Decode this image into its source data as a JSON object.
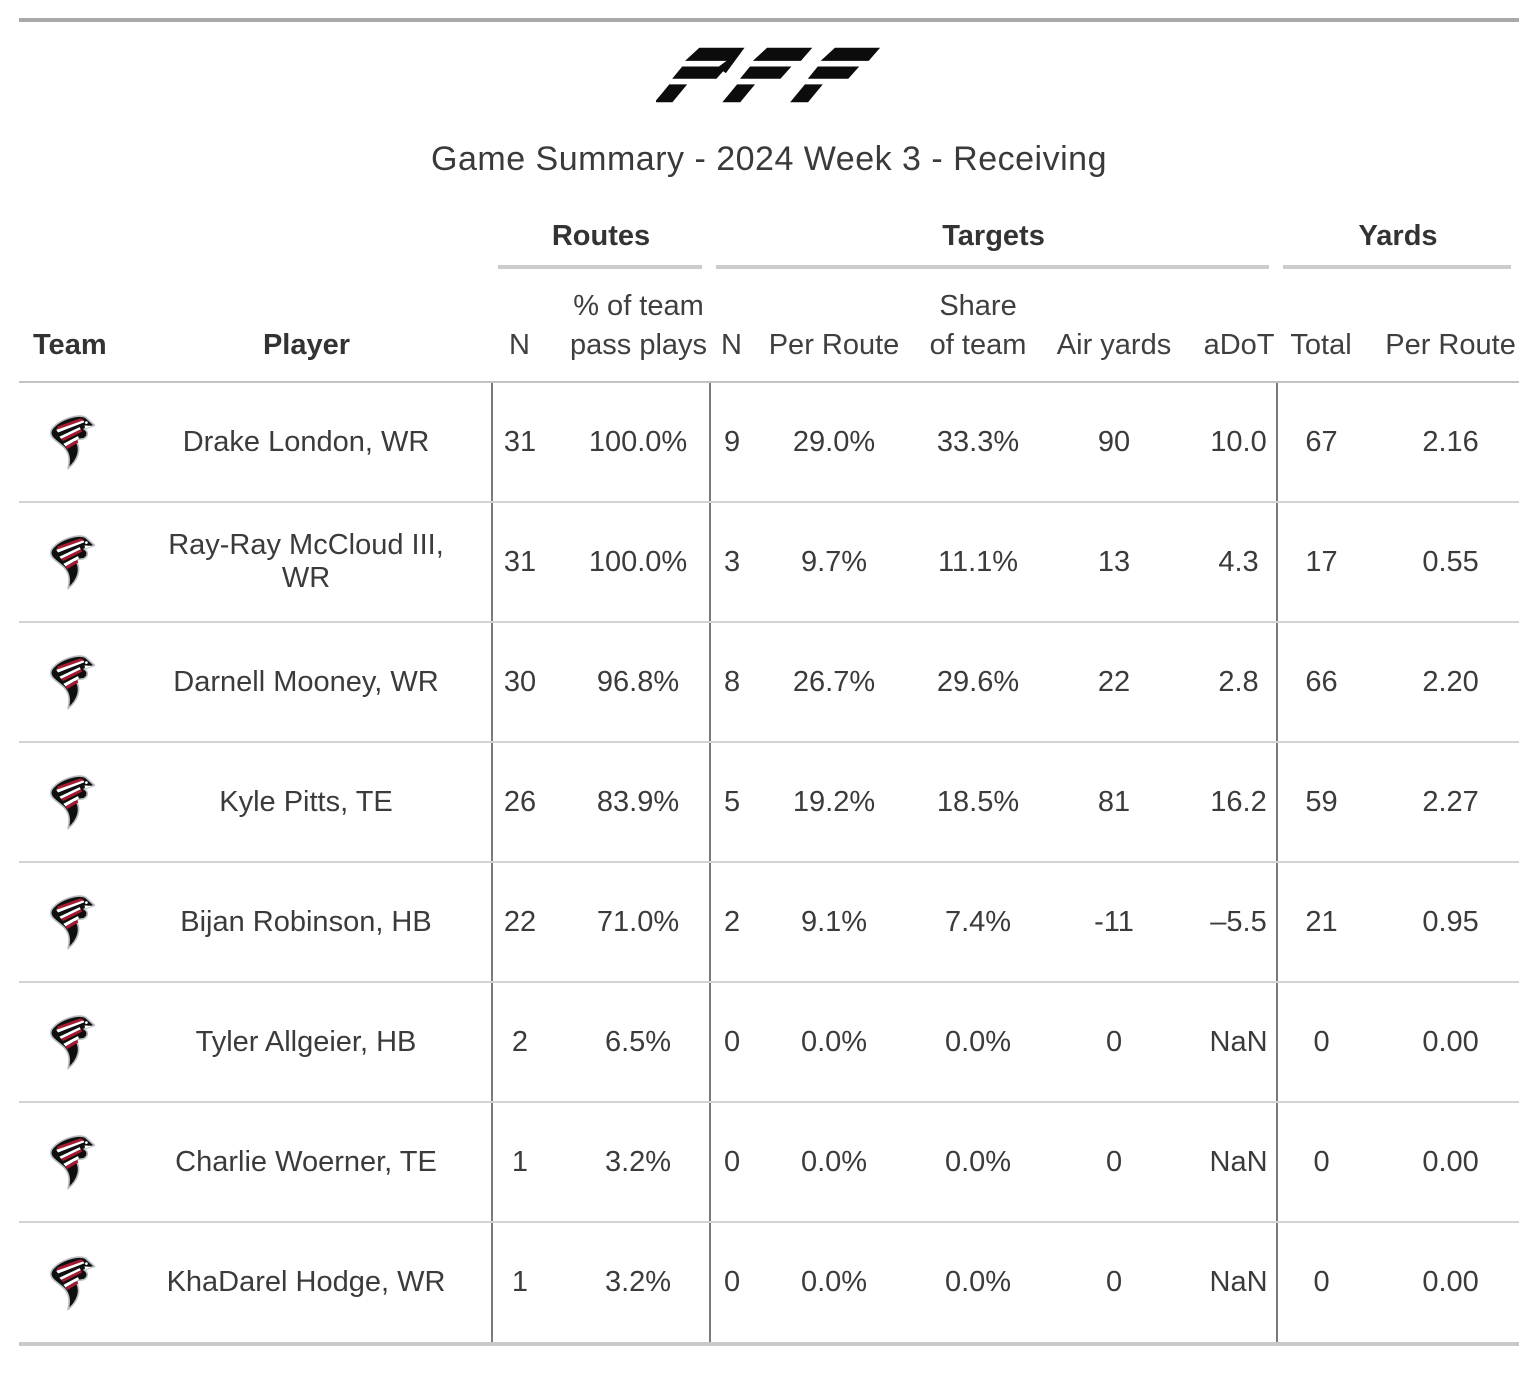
{
  "brand": {
    "logo_text": "PFF"
  },
  "title": "Game Summary - 2024 Week 3 - Receiving",
  "table": {
    "group_headers": {
      "routes": "Routes",
      "targets": "Targets",
      "yards": "Yards"
    },
    "column_headers": {
      "team": "Team",
      "player": "Player",
      "routes_n": "N",
      "routes_pct": "% of team\npass plays",
      "targets_n": "N",
      "targets_per_route": "Per Route",
      "share_of_team": "Share\nof team",
      "air_yards": "Air yards",
      "adot": "aDoT",
      "yards_total": "Total",
      "yards_per_route": "Per Route"
    },
    "team_icon": "atlanta-falcons-logo",
    "rows": [
      {
        "player": "Drake London, WR",
        "stats": [
          "31",
          "100.0%",
          "9",
          "29.0%",
          "33.3%",
          "90",
          "10.0",
          "67",
          "2.16"
        ]
      },
      {
        "player": "Ray-Ray McCloud III, WR",
        "stats": [
          "31",
          "100.0%",
          "3",
          "9.7%",
          "11.1%",
          "13",
          "4.3",
          "17",
          "0.55"
        ]
      },
      {
        "player": "Darnell Mooney, WR",
        "stats": [
          "30",
          "96.8%",
          "8",
          "26.7%",
          "29.6%",
          "22",
          "2.8",
          "66",
          "2.20"
        ]
      },
      {
        "player": "Kyle Pitts, TE",
        "stats": [
          "26",
          "83.9%",
          "5",
          "19.2%",
          "18.5%",
          "81",
          "16.2",
          "59",
          "2.27"
        ]
      },
      {
        "player": "Bijan Robinson, HB",
        "stats": [
          "22",
          "71.0%",
          "2",
          "9.1%",
          "7.4%",
          "-11",
          "–5.5",
          "21",
          "0.95"
        ]
      },
      {
        "player": "Tyler Allgeier, HB",
        "stats": [
          "2",
          "6.5%",
          "0",
          "0.0%",
          "0.0%",
          "0",
          "NaN",
          "0",
          "0.00"
        ]
      },
      {
        "player": "Charlie Woerner, TE",
        "stats": [
          "1",
          "3.2%",
          "0",
          "0.0%",
          "0.0%",
          "0",
          "NaN",
          "0",
          "0.00"
        ]
      },
      {
        "player": "KhaDarel Hodge, WR",
        "stats": [
          "1",
          "3.2%",
          "0",
          "0.0%",
          "0.0%",
          "0",
          "NaN",
          "0",
          "0.00"
        ]
      }
    ]
  },
  "colors": {
    "falcons_red": "#a71930",
    "logo_black": "#0c0c0c",
    "divider_gray": "#7a7a7a"
  }
}
